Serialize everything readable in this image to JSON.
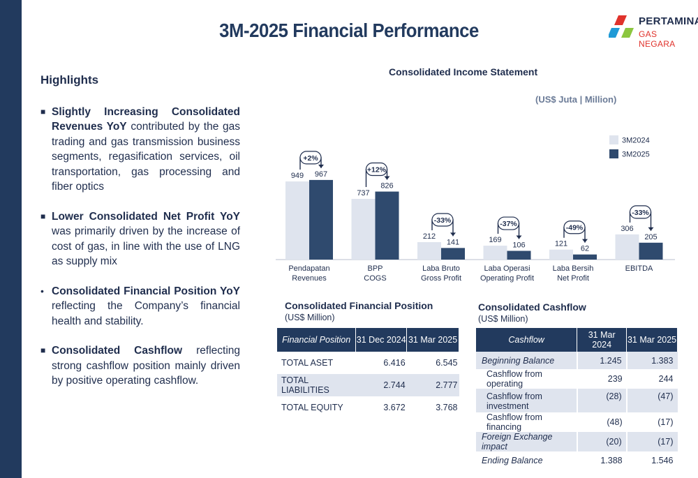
{
  "page_title": "3M-2025 Financial Performance",
  "logo": {
    "brand": "PERTAMINA",
    "sub": "GAS NEGARA"
  },
  "highlights": {
    "heading": "Highlights",
    "items": [
      {
        "bold": "Slightly Increasing Consolidated Revenues YoY",
        "text": " contributed by the gas trading and gas transmission business segments, regasification services, oil transportation, gas processing and fiber optics"
      },
      {
        "bold": "Lower Consolidated Net Profit YoY",
        "text": " was primarily driven by  the increase of cost of gas, in line with the use of LNG as supply mix"
      },
      {
        "bold": "Consolidated Financial Position YoY",
        "text": " reflecting the Company’s financial health and stability."
      },
      {
        "bold": "Consolidated Cashflow",
        "text": " reflecting strong cashflow position mainly driven by positive operating cashflow."
      }
    ]
  },
  "chart_data": {
    "type": "bar",
    "title": "Consolidated Income Statement",
    "unit": "(US$ Juta | Million)",
    "categories": [
      "Pendapatan\nRevenues",
      "BPP\nCOGS",
      "Laba Bruto\nGross Profit",
      "Laba Operasi\nOperating Profit",
      "Laba Bersih\nNet Profit",
      "EBITDA"
    ],
    "series": [
      {
        "name": "3M2024",
        "values": [
          949,
          737,
          212,
          169,
          121,
          306
        ],
        "color": "#dfe4ee"
      },
      {
        "name": "3M2025",
        "values": [
          967,
          826,
          141,
          106,
          62,
          205
        ],
        "color": "#2f4a6e"
      }
    ],
    "changes": [
      "+2%",
      "+12%",
      "-33%",
      "-37%",
      "-49%",
      "-33%"
    ],
    "ylim": [
      0,
      1000
    ],
    "legend": "right"
  },
  "financial_position": {
    "title": "Consolidated Financial Position",
    "unit": "(US$ Million)",
    "headers": [
      "Financial Position",
      "31 Dec 2024",
      "31 Mar 2025"
    ],
    "rows": [
      {
        "label": "TOTAL ASET",
        "values": [
          "6.416",
          "6.545"
        ]
      },
      {
        "label": "TOTAL LIABILITIES",
        "values": [
          "2.744",
          "2.777"
        ]
      },
      {
        "label": "TOTAL EQUITY",
        "values": [
          "3.672",
          "3.768"
        ]
      }
    ]
  },
  "cashflow": {
    "title": "Consolidated Cashflow",
    "unit": "(US$ Million)",
    "headers": [
      "Cashflow",
      "31 Mar 2024",
      "31 Mar 2025"
    ],
    "rows": [
      {
        "label": "Beginning Balance",
        "values": [
          "1.245",
          "1.383"
        ]
      },
      {
        "label": "Cashflow from operating",
        "values": [
          "239",
          "244"
        ]
      },
      {
        "label": "Cashflow from investment",
        "values": [
          "(28)",
          "(47)"
        ]
      },
      {
        "label": "Cashflow from financing",
        "values": [
          "(48)",
          "(17)"
        ]
      },
      {
        "label": "Foreign Exchange impact",
        "values": [
          "(20)",
          "(17)"
        ]
      },
      {
        "label": "Ending Balance",
        "values": [
          "1.388",
          "1.546"
        ]
      }
    ]
  }
}
